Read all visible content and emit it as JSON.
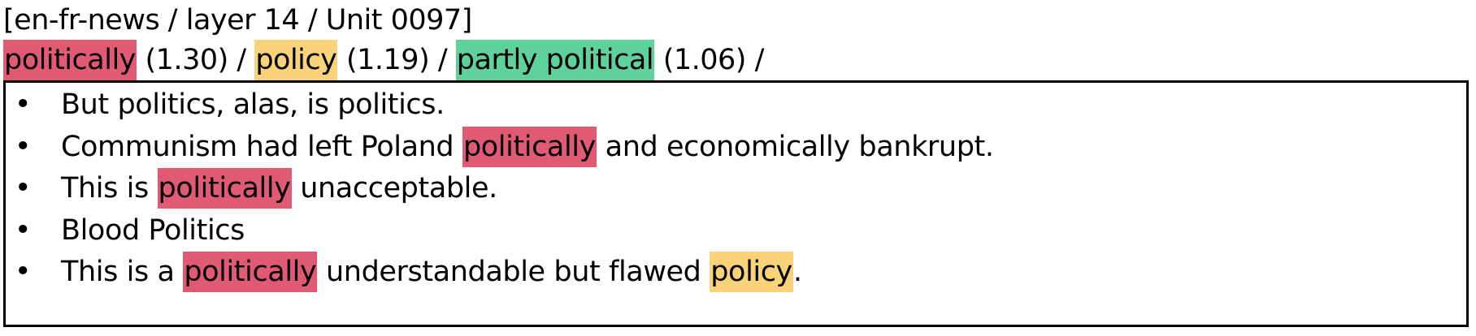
{
  "title": "[en-fr-news / layer 14 / Unit 0097]",
  "units": [
    {
      "token": "politically",
      "score": "(1.30)",
      "color": "#e05a74"
    },
    {
      "token": "policy",
      "score": "(1.19)",
      "color": "#f9d27a"
    },
    {
      "token": "partly political",
      "score": "(1.06)",
      "color": "#5fd19b"
    }
  ],
  "separator": " / ",
  "bullet": "•",
  "examples": [
    [
      {
        "text": "But politics, alas, is politics."
      }
    ],
    [
      {
        "text": "Communism had left Poland "
      },
      {
        "text": "politically",
        "unit": 0
      },
      {
        "text": " and economically bankrupt."
      }
    ],
    [
      {
        "text": "This is "
      },
      {
        "text": "politically",
        "unit": 0
      },
      {
        "text": " unacceptable."
      }
    ],
    [
      {
        "text": "Blood Politics"
      }
    ],
    [
      {
        "text": "This is a "
      },
      {
        "text": "politically",
        "unit": 0
      },
      {
        "text": " understandable but flawed "
      },
      {
        "text": "policy",
        "unit": 1
      },
      {
        "text": "."
      }
    ]
  ]
}
